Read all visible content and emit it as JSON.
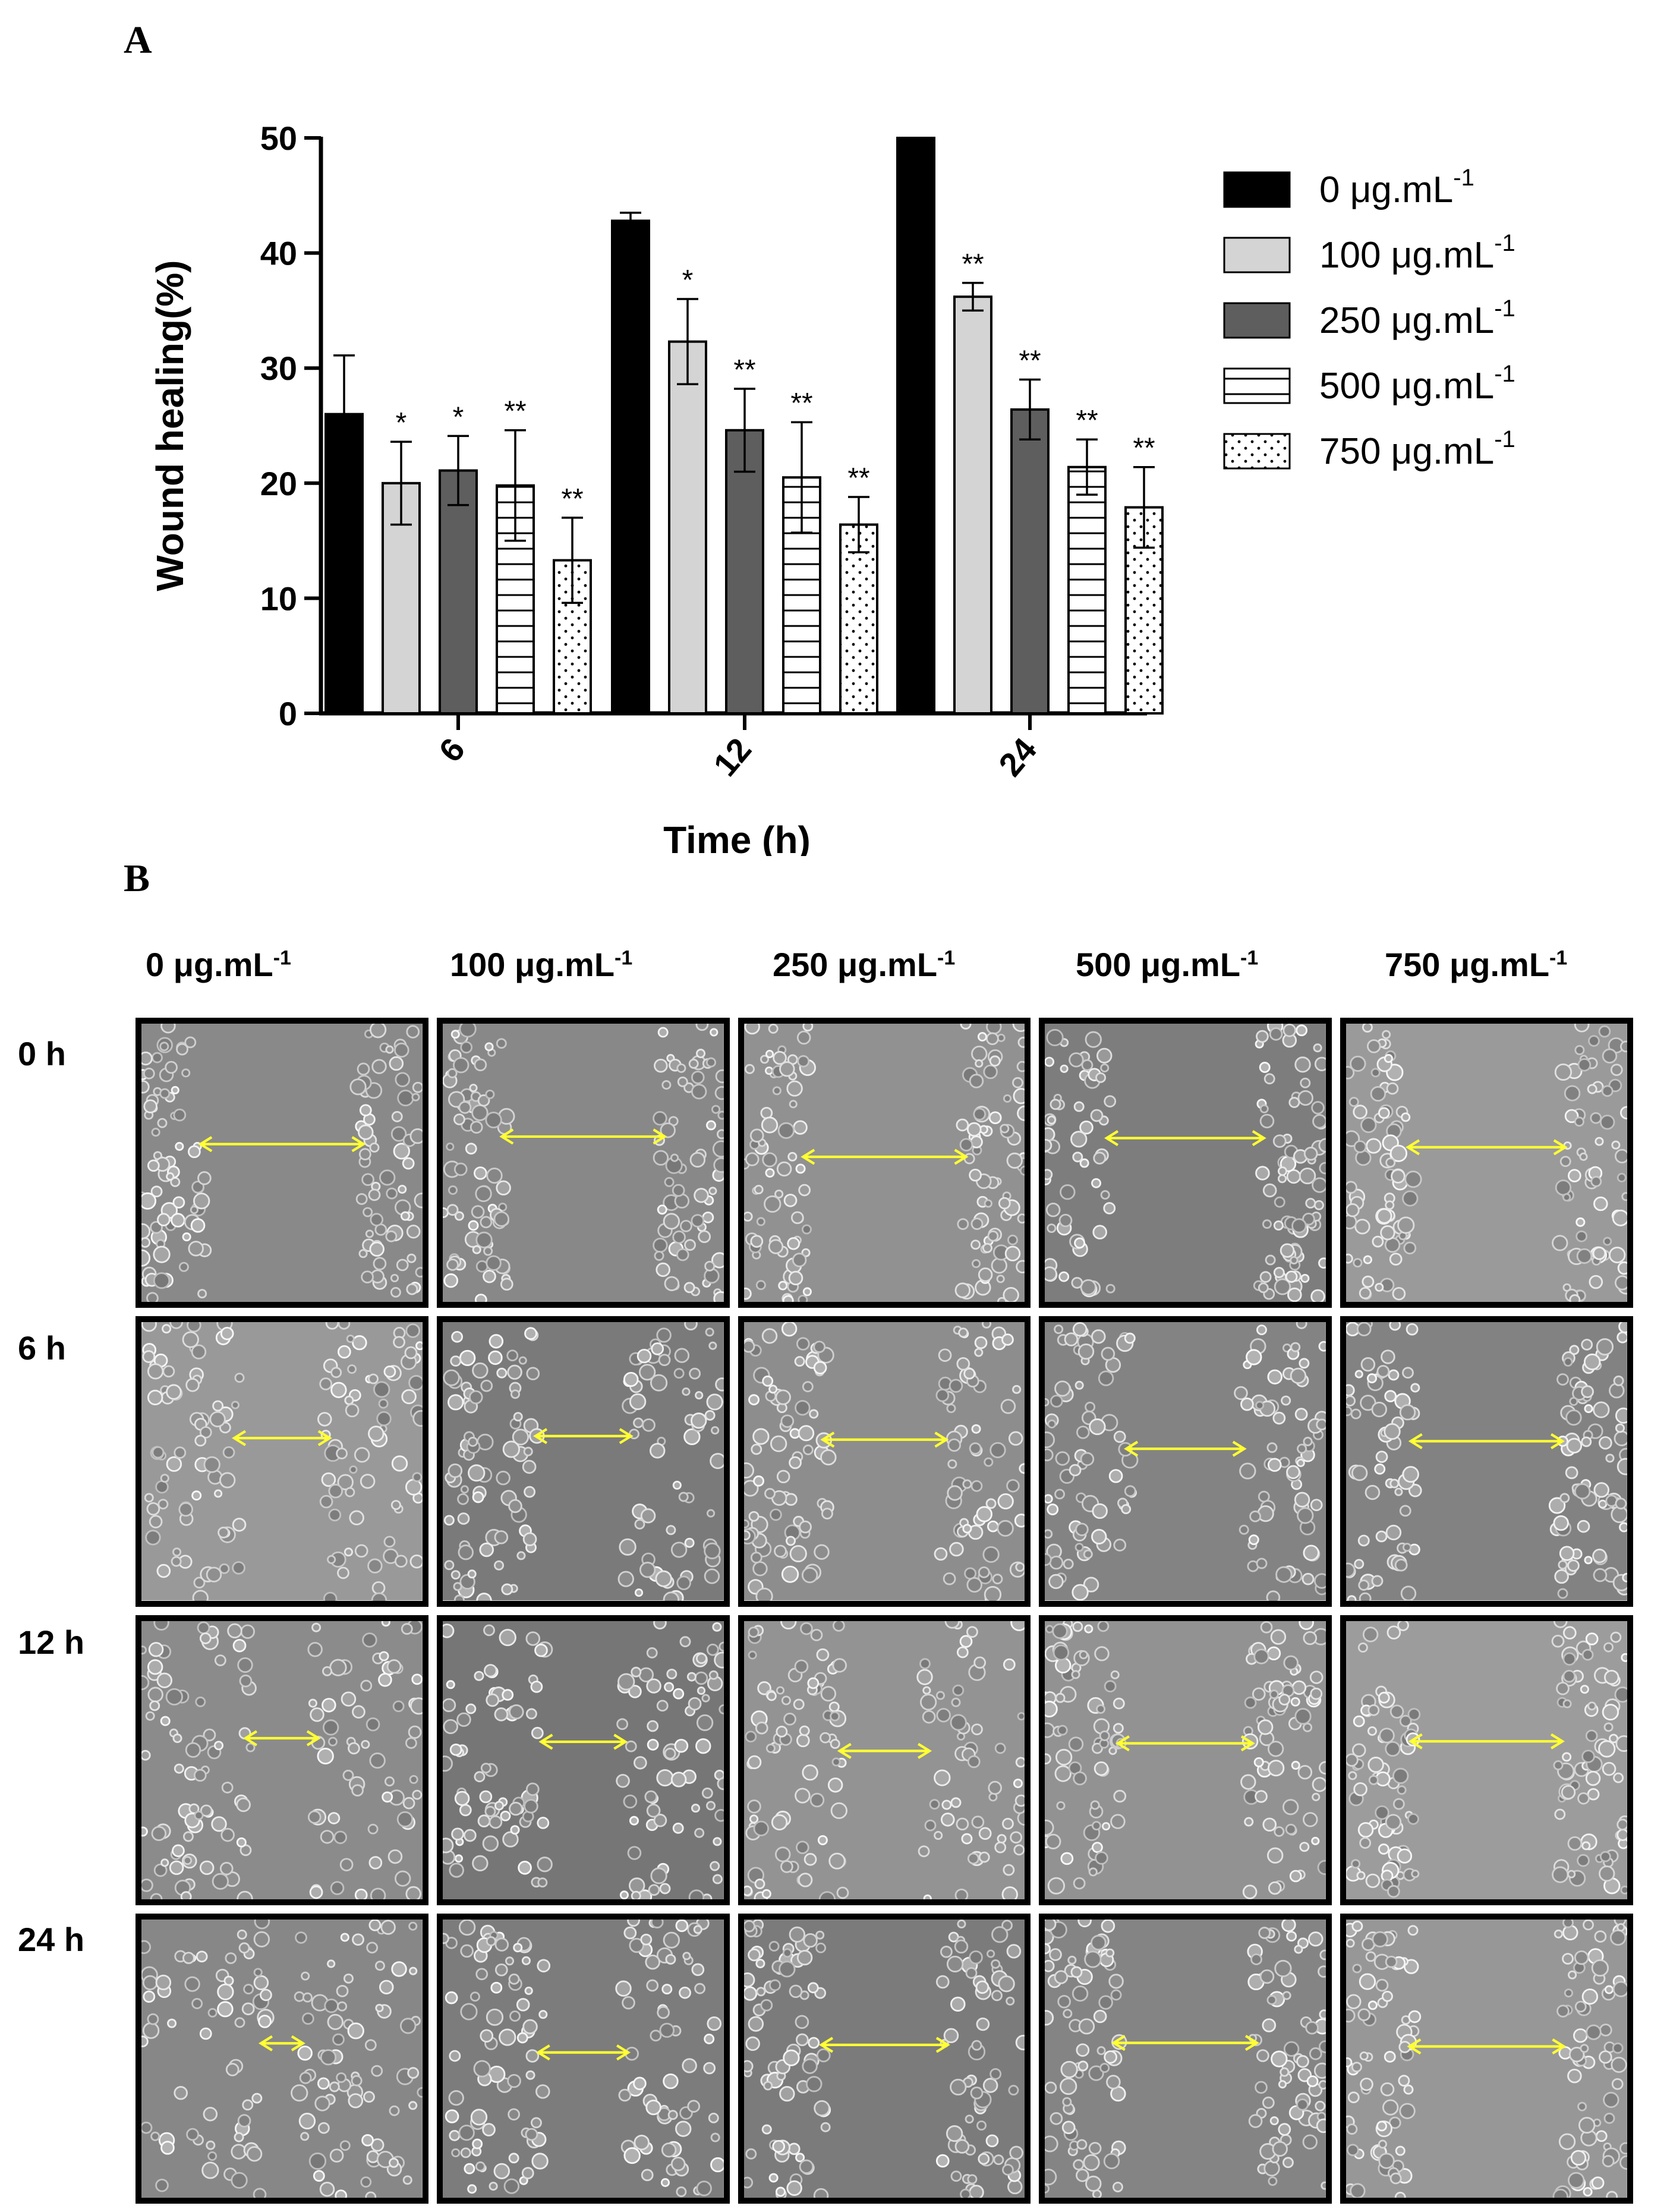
{
  "panel_a_label": "A",
  "panel_b_label": "B",
  "chart_data": {
    "type": "bar",
    "xlabel": "Time (h)",
    "ylabel": "Wound healing(%)",
    "ylim": [
      0,
      50
    ],
    "yticks": [
      "0",
      "10",
      "20",
      "30",
      "40",
      "50"
    ],
    "categories": [
      "6",
      "12",
      "24"
    ],
    "series": [
      {
        "name": "0 μg.mL",
        "superscript": "-1",
        "values": [
          26,
          42.8,
          50
        ],
        "errors": [
          5.1,
          0.7,
          0
        ],
        "significance": [
          "",
          "",
          ""
        ],
        "fill": "#000000",
        "pattern": "solid"
      },
      {
        "name": "100 μg.mL",
        "superscript": "-1",
        "values": [
          20,
          32.3,
          36.2
        ],
        "errors": [
          3.6,
          3.7,
          1.2
        ],
        "significance": [
          "*",
          "*",
          "**"
        ],
        "fill": "#d4d4d4",
        "pattern": "solid"
      },
      {
        "name": "250 μg.mL",
        "superscript": "-1",
        "values": [
          21.1,
          24.6,
          26.4
        ],
        "errors": [
          3,
          3.6,
          2.6
        ],
        "significance": [
          "*",
          "**",
          "**"
        ],
        "fill": "#5e5e5e",
        "pattern": "solid"
      },
      {
        "name": "500 μg.mL",
        "superscript": "-1",
        "values": [
          19.8,
          20.5,
          21.4
        ],
        "errors": [
          4.8,
          4.8,
          2.4
        ],
        "significance": [
          "**",
          "**",
          "**"
        ],
        "fill": "#ffffff",
        "pattern": "hlines"
      },
      {
        "name": "750 μg.mL",
        "superscript": "-1",
        "values": [
          13.3,
          16.4,
          17.9
        ],
        "errors": [
          3.7,
          2.4,
          3.5
        ],
        "significance": [
          "**",
          "**",
          "**"
        ],
        "fill": "#ffffff",
        "pattern": "dots"
      }
    ]
  },
  "panel_b": {
    "columns": [
      {
        "label": "0 μg.mL",
        "superscript": "-1"
      },
      {
        "label": "100 μg.mL",
        "superscript": "-1"
      },
      {
        "label": "250 μg.mL",
        "superscript": "-1"
      },
      {
        "label": "500 μg.mL",
        "superscript": "-1"
      },
      {
        "label": "750 μg.mL",
        "superscript": "-1"
      }
    ],
    "rows": [
      "0 h",
      "6 h",
      "12 h",
      "24 h"
    ],
    "arrow_color": "#ffff33",
    "gap_fraction": [
      [
        0.62,
        0.62,
        0.62,
        0.6,
        0.6
      ],
      [
        0.38,
        0.38,
        0.48,
        0.46,
        0.58
      ],
      [
        0.3,
        0.34,
        0.36,
        0.52,
        0.58
      ],
      [
        0.19,
        0.36,
        0.49,
        0.55,
        0.59
      ]
    ]
  }
}
